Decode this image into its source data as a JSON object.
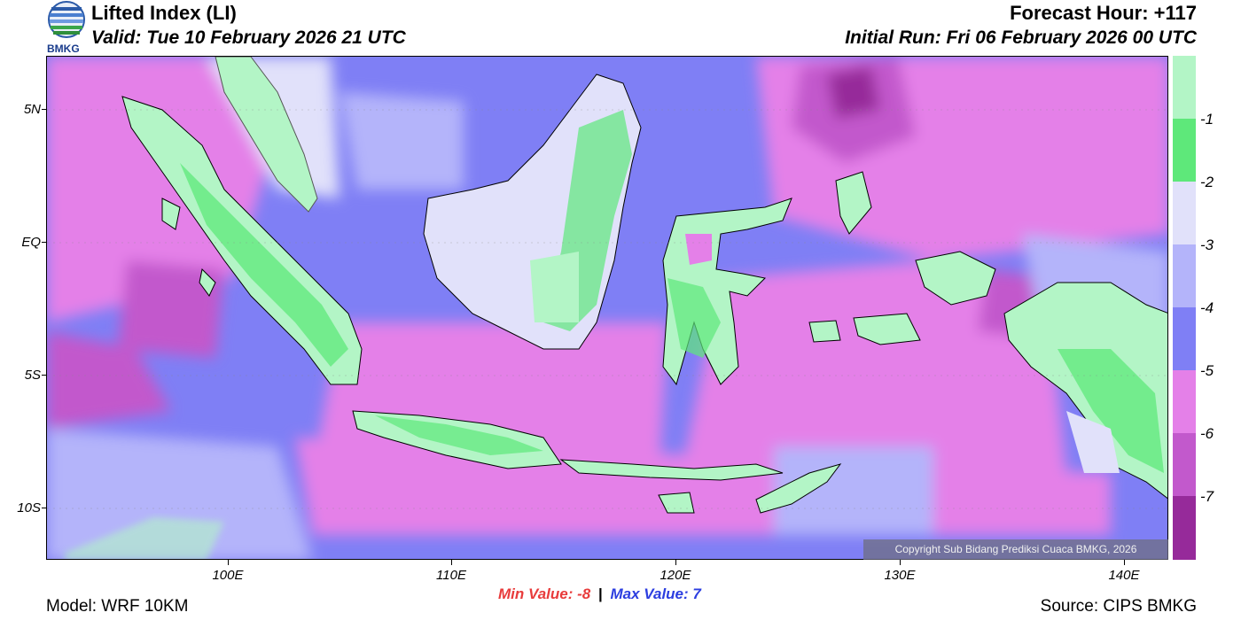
{
  "header": {
    "title": "Lifted Index (LI)",
    "valid": "Valid: Tue 10 February 2026 21 UTC",
    "forecast_hour": "Forecast Hour: +117",
    "initial_run": "Initial Run: Fri 06 February 2026 00 UTC",
    "logo_text": "BMKG"
  },
  "axes": {
    "lat_labels": [
      "5N",
      "EQ",
      "5S",
      "10S"
    ],
    "lon_labels": [
      "100E",
      "110E",
      "120E",
      "130E",
      "140E"
    ]
  },
  "colorbar": {
    "labels": [
      "-1",
      "-2",
      "-3",
      "-4",
      "-5",
      "-6",
      "-7"
    ],
    "colors": [
      "#b3f5c6",
      "#5ee87a",
      "#e1e1fa",
      "#b4b4fa",
      "#7f7ff5",
      "#e480e8",
      "#c259cc",
      "#962a9a"
    ]
  },
  "stats": {
    "min_label": "Min Value:",
    "min_value": "-8",
    "separator": "|",
    "max_label": "Max Value:",
    "max_value": "7",
    "min_color": "#e83c3c",
    "max_color": "#2c3ee0"
  },
  "footer": {
    "model": "Model: WRF 10KM",
    "source": "Source: CIPS BMKG",
    "copyright": "Copyright Sub Bidang Prediksi Cuaca BMKG, 2026"
  }
}
